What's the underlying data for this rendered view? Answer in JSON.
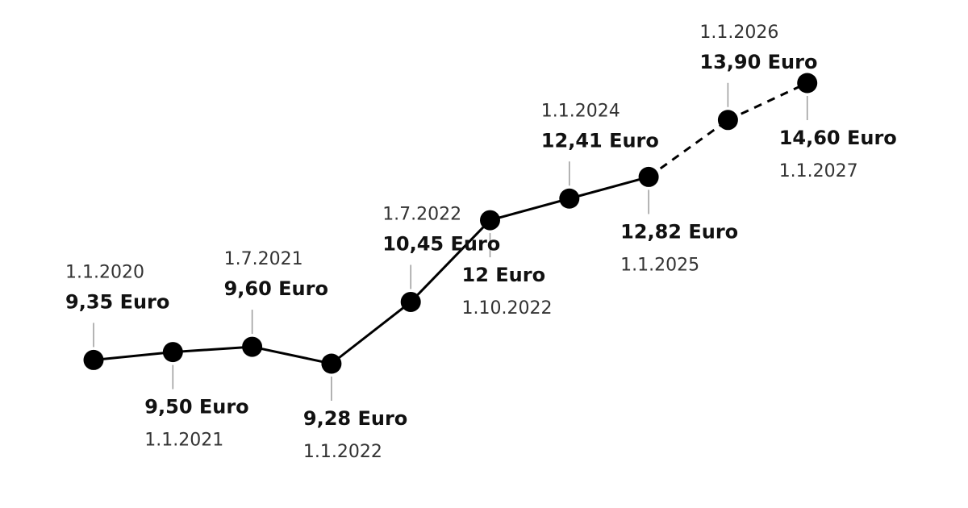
{
  "chart_data": {
    "type": "line",
    "title": "",
    "xlabel": "",
    "ylabel": "",
    "grid": false,
    "series": [
      {
        "values": [
          9.35,
          9.5,
          9.6,
          9.28,
          10.45,
          12,
          12.41,
          12.82,
          13.9,
          14.6
        ]
      }
    ],
    "points": [
      {
        "date": "1.1.2020",
        "value": 9.35,
        "value_label": "9,35 Euro",
        "label_pos": "above",
        "segment_to_next": "solid"
      },
      {
        "date": "1.1.2021",
        "value": 9.5,
        "value_label": "9,50 Euro",
        "label_pos": "below",
        "segment_to_next": "solid"
      },
      {
        "date": "1.7.2021",
        "value": 9.6,
        "value_label": "9,60 Euro",
        "label_pos": "above",
        "segment_to_next": "solid"
      },
      {
        "date": "1.1.2022",
        "value": 9.28,
        "value_label": "9,28 Euro",
        "label_pos": "below",
        "segment_to_next": "solid"
      },
      {
        "date": "1.7.2022",
        "value": 10.45,
        "value_label": "10,45 Euro",
        "label_pos": "above",
        "segment_to_next": "solid"
      },
      {
        "date": "1.10.2022",
        "value": 12,
        "value_label": "12 Euro",
        "label_pos": "below",
        "segment_to_next": "solid"
      },
      {
        "date": "1.1.2024",
        "value": 12.41,
        "value_label": "12,41 Euro",
        "label_pos": "above",
        "segment_to_next": "solid"
      },
      {
        "date": "1.1.2025",
        "value": 12.82,
        "value_label": "12,82 Euro",
        "label_pos": "below",
        "segment_to_next": "dashed"
      },
      {
        "date": "1.1.2026",
        "value": 13.9,
        "value_label": "13,90 Euro",
        "label_pos": "above",
        "segment_to_next": "dashed"
      },
      {
        "date": "1.1.2027",
        "value": 14.6,
        "value_label": "14,60 Euro",
        "label_pos": "below",
        "segment_to_next": null
      }
    ],
    "projected_from": "1.1.2025"
  },
  "colors": {
    "line": "#000000",
    "point": "#000000",
    "value_text": "#111111",
    "date_text": "#333333",
    "leader": "#9a9a9a"
  }
}
